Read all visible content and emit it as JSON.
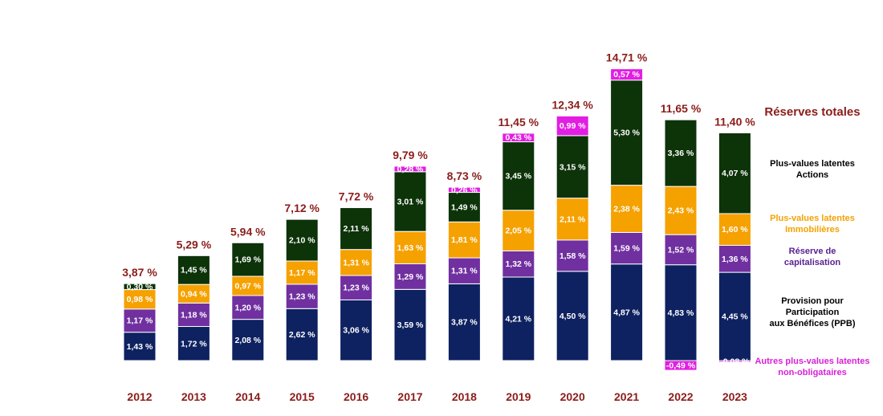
{
  "chart_data": {
    "type": "bar",
    "stacked": true,
    "categories": [
      "2012",
      "2013",
      "2014",
      "2015",
      "2016",
      "2017",
      "2018",
      "2019",
      "2020",
      "2021",
      "2022",
      "2023"
    ],
    "series": [
      {
        "name": "Provision pour Participation aux Bénéfices (PPB)",
        "color": "#0e2160",
        "values": [
          1.43,
          1.72,
          2.08,
          2.62,
          3.06,
          3.59,
          3.87,
          4.21,
          4.5,
          4.87,
          4.83,
          4.45
        ],
        "labels": [
          "1,43 %",
          "1,72 %",
          "2,08 %",
          "2,62 %",
          "3,06 %",
          "3,59 %",
          "3,87 %",
          "4,21 %",
          "4,50 %",
          "4,87 %",
          "4,83 %",
          "4,45 %"
        ]
      },
      {
        "name": "Réserve de capitalisation",
        "color": "#7030a0",
        "values": [
          1.17,
          1.18,
          1.2,
          1.23,
          1.23,
          1.29,
          1.31,
          1.32,
          1.58,
          1.59,
          1.52,
          1.36
        ],
        "labels": [
          "1,17 %",
          "1,18 %",
          "1,20 %",
          "1,23 %",
          "1,23 %",
          "1,29 %",
          "1,31 %",
          "1,32 %",
          "1,58 %",
          "1,59 %",
          "1,52 %",
          "1,36 %"
        ]
      },
      {
        "name": "Plus-values latentes Immobilières",
        "color": "#f5a100",
        "values": [
          0.98,
          0.94,
          0.97,
          1.17,
          1.31,
          1.63,
          1.81,
          2.05,
          2.11,
          2.38,
          2.43,
          1.6
        ],
        "labels": [
          "0,98 %",
          "0,94 %",
          "0,97 %",
          "1,17 %",
          "1,31 %",
          "1,63 %",
          "1,81 %",
          "2,05 %",
          "2,11 %",
          "2,38 %",
          "2,43 %",
          "1,60 %"
        ]
      },
      {
        "name": "Plus-values latentes Actions",
        "color": "#0d3309",
        "values": [
          0.3,
          1.45,
          1.69,
          2.1,
          2.11,
          3.01,
          1.49,
          3.45,
          3.15,
          5.3,
          3.36,
          4.07
        ],
        "labels": [
          "0,30 %",
          "1,45 %",
          "1,69 %",
          "2,10 %",
          "2,11 %",
          "3,01 %",
          "1,49 %",
          "3,45 %",
          "3,15 %",
          "5,30 %",
          "3,36 %",
          "4,07 %"
        ]
      },
      {
        "name": "Autres plus-values latentes non-obligataires",
        "color": "#e21ee3",
        "values": [
          0,
          0,
          0,
          0,
          0,
          0.28,
          0.26,
          0.43,
          0.99,
          0.57,
          -0.49,
          -0.08
        ],
        "labels": [
          "",
          "",
          "",
          "",
          "",
          "0,28 %",
          "0,26 %",
          "0,43 %",
          "0,99 %",
          "0,57 %",
          "-0,49 %",
          "-0,08 %"
        ]
      }
    ],
    "totals": [
      3.87,
      5.29,
      5.94,
      7.12,
      7.72,
      9.79,
      8.73,
      11.45,
      12.34,
      14.71,
      11.65,
      11.4
    ],
    "total_labels": [
      "3,87 %",
      "5,29 %",
      "5,94 %",
      "7,12 %",
      "7,72 %",
      "9,79 %",
      "8,73 %",
      "11,45 %",
      "12,34 %",
      "14,71 %",
      "11,65 %",
      "11,40 %"
    ],
    "legend_title": "Réserves totales",
    "legend_position": "right",
    "grid": false,
    "colors": {
      "total_text": "#8b1d1a",
      "year_text": "#8b1d1a",
      "legend_title": "#8b1d1a"
    },
    "legend": [
      {
        "series": 3,
        "lines": [
          "Plus-values latentes",
          "Actions"
        ],
        "color": "#000000"
      },
      {
        "series": 2,
        "lines": [
          "Plus-values latentes",
          "Immobilières"
        ],
        "color": "#f5a100"
      },
      {
        "series": 1,
        "lines": [
          "Réserve de",
          "capitalisation"
        ],
        "color": "#5a2290"
      },
      {
        "series": 0,
        "lines": [
          "Provision pour",
          "Participation",
          "aux Bénéfices (PPB)"
        ],
        "color": "#000000"
      },
      {
        "series": 4,
        "lines": [
          "Autres plus-values latentes",
          "non-obligataires"
        ],
        "color": "#d81fd8"
      }
    ]
  }
}
